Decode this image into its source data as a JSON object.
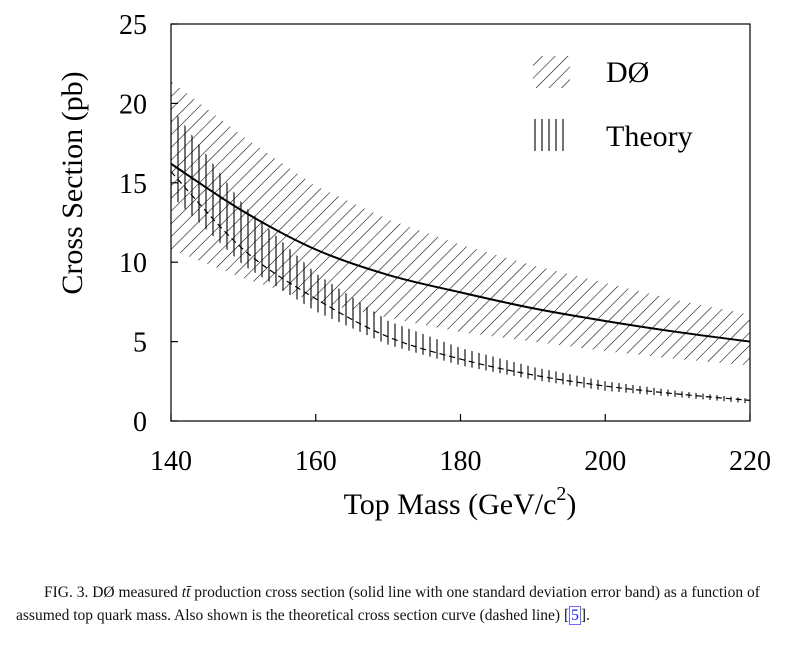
{
  "chart_data": {
    "type": "line",
    "xlabel": "Top Mass (GeV/c",
    "xlabel_sup": "2",
    "xlabel_end": ")",
    "ylabel": "Cross Section (pb)",
    "xlim": [
      140,
      220
    ],
    "ylim": [
      0,
      25
    ],
    "xticks": [
      "140",
      "160",
      "180",
      "200",
      "220"
    ],
    "yticks": [
      "0",
      "5",
      "10",
      "15",
      "20",
      "25"
    ],
    "legend": {
      "position": "top-right",
      "entries": [
        {
          "label": "DØ",
          "hatch": "diagonal"
        },
        {
          "label": "Theory",
          "hatch": "vertical"
        }
      ]
    },
    "series": [
      {
        "name": "DØ",
        "style": "solid",
        "x": [
          140,
          150,
          160,
          170,
          180,
          190,
          200,
          210,
          220
        ],
        "y": [
          16.2,
          13.2,
          10.8,
          9.2,
          8.1,
          7.1,
          6.3,
          5.6,
          5.0
        ],
        "band_upper": [
          21.4,
          17.9,
          14.8,
          12.7,
          11.1,
          9.8,
          8.7,
          7.6,
          6.7
        ],
        "band_lower": [
          10.8,
          9.0,
          7.5,
          6.5,
          5.6,
          5.0,
          4.4,
          3.9,
          3.5
        ]
      },
      {
        "name": "Theory",
        "style": "dashed",
        "x": [
          140,
          150,
          160,
          170,
          180,
          190,
          200,
          210,
          220
        ],
        "y": [
          15.7,
          10.8,
          7.7,
          5.3,
          3.9,
          2.9,
          2.2,
          1.7,
          1.3
        ],
        "band_upper": [
          19.8,
          13.6,
          9.3,
          6.3,
          4.6,
          3.4,
          2.5,
          1.9,
          1.4
        ],
        "band_lower": [
          14.2,
          9.8,
          6.9,
          4.8,
          3.5,
          2.6,
          1.9,
          1.5,
          1.1
        ]
      }
    ]
  },
  "caption": {
    "part1": "FIG. 3. DØ measured ",
    "tt": "tt̄",
    "part2": " production cross section (solid line with one standard deviation error band) as a function of assumed top quark mass. Also shown is the theoretical cross section curve (dashed line) [",
    "ref": "5",
    "part3": "]."
  }
}
